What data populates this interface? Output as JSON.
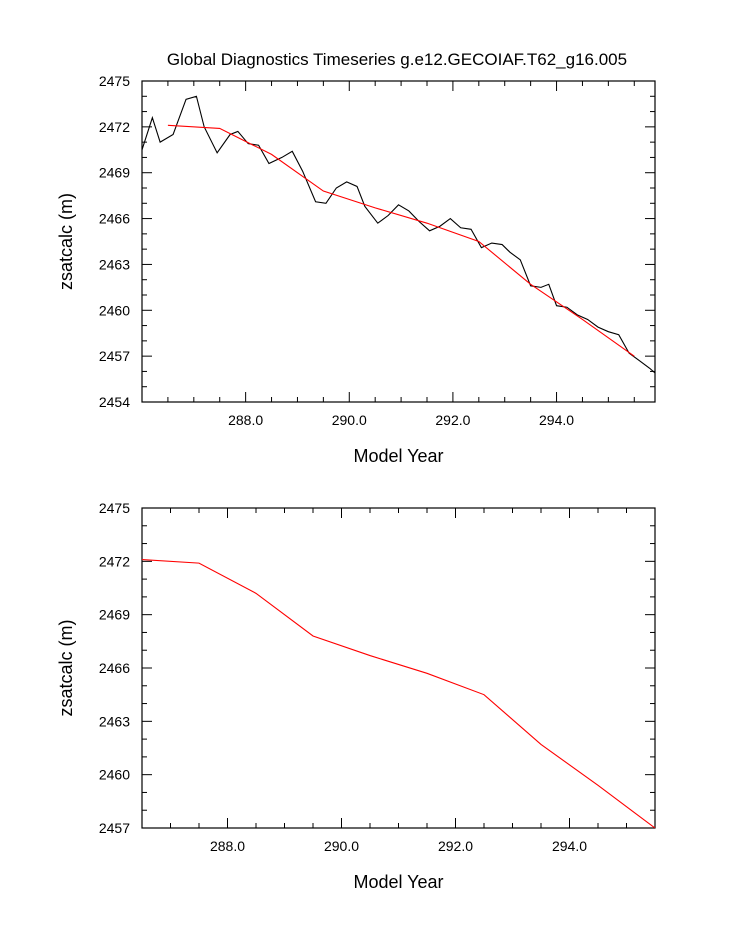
{
  "title": "Global Diagnostics Timeseries g.e12.GECOIAF.T62_g16.005",
  "colors": {
    "monthly": "#000000",
    "annual": "#ff0000",
    "frame": "#000000"
  },
  "chart_data": [
    {
      "type": "line",
      "xlabel": "Model Year",
      "ylabel": "zsatcalc (m)",
      "xlim": [
        286.0,
        295.9
      ],
      "ylim": [
        2454,
        2475
      ],
      "x_ticks": [
        288.0,
        290.0,
        292.0,
        294.0
      ],
      "x_tick_labels": [
        "288.0",
        "290.0",
        "292.0",
        "294.0"
      ],
      "y_ticks": [
        2454,
        2457,
        2460,
        2463,
        2466,
        2469,
        2472,
        2475
      ],
      "y_tick_labels": [
        "2454",
        "2457",
        "2460",
        "2463",
        "2466",
        "2469",
        "2472",
        "2475"
      ],
      "series": [
        {
          "color": "#000000",
          "x": [
            286.0,
            286.2,
            286.35,
            286.6,
            286.85,
            287.05,
            287.2,
            287.45,
            287.7,
            287.85,
            288.05,
            288.25,
            288.45,
            288.7,
            288.9,
            289.1,
            289.35,
            289.55,
            289.75,
            289.95,
            290.15,
            290.3,
            290.55,
            290.75,
            290.95,
            291.15,
            291.35,
            291.55,
            291.75,
            291.95,
            292.15,
            292.35,
            292.55,
            292.75,
            292.95,
            293.1,
            293.3,
            293.5,
            293.7,
            293.85,
            294.0,
            294.2,
            294.4,
            294.6,
            294.8,
            295.0,
            295.2,
            295.4,
            295.6,
            295.8,
            295.9
          ],
          "y": [
            2470.5,
            2472.6,
            2471.0,
            2471.5,
            2473.8,
            2474.0,
            2472.0,
            2470.3,
            2471.5,
            2471.7,
            2470.9,
            2470.8,
            2469.6,
            2470.0,
            2470.4,
            2469.1,
            2467.1,
            2467.0,
            2468.0,
            2468.4,
            2468.1,
            2466.8,
            2465.7,
            2466.2,
            2466.9,
            2466.5,
            2465.8,
            2465.2,
            2465.5,
            2466.0,
            2465.4,
            2465.3,
            2464.1,
            2464.4,
            2464.3,
            2463.8,
            2463.3,
            2461.6,
            2461.5,
            2461.7,
            2460.3,
            2460.2,
            2459.7,
            2459.4,
            2458.9,
            2458.6,
            2458.4,
            2457.2,
            2456.7,
            2456.2,
            2455.9
          ]
        },
        {
          "color": "#ff0000",
          "x": [
            286.5,
            287.5,
            288.5,
            289.5,
            290.5,
            291.5,
            292.5,
            293.5,
            294.5,
            295.5
          ],
          "y": [
            2472.1,
            2471.9,
            2470.2,
            2467.8,
            2466.7,
            2465.7,
            2464.5,
            2461.7,
            2459.4,
            2457.0
          ]
        }
      ]
    },
    {
      "type": "line",
      "xlabel": "Model Year",
      "ylabel": "zsatcalc (m)",
      "xlim": [
        286.5,
        295.5
      ],
      "ylim": [
        2457,
        2475
      ],
      "x_ticks": [
        288.0,
        290.0,
        292.0,
        294.0
      ],
      "x_tick_labels": [
        "288.0",
        "290.0",
        "292.0",
        "294.0"
      ],
      "y_ticks": [
        2457,
        2460,
        2463,
        2466,
        2469,
        2472,
        2475
      ],
      "y_tick_labels": [
        "2457",
        "2460",
        "2463",
        "2466",
        "2469",
        "2472",
        "2475"
      ],
      "series": [
        {
          "color": "#ff0000",
          "x": [
            286.5,
            287.5,
            288.5,
            289.5,
            290.5,
            291.5,
            292.5,
            293.5,
            294.5,
            295.5
          ],
          "y": [
            2472.1,
            2471.9,
            2470.2,
            2467.8,
            2466.7,
            2465.7,
            2464.5,
            2461.7,
            2459.4,
            2457.0
          ]
        }
      ]
    }
  ]
}
